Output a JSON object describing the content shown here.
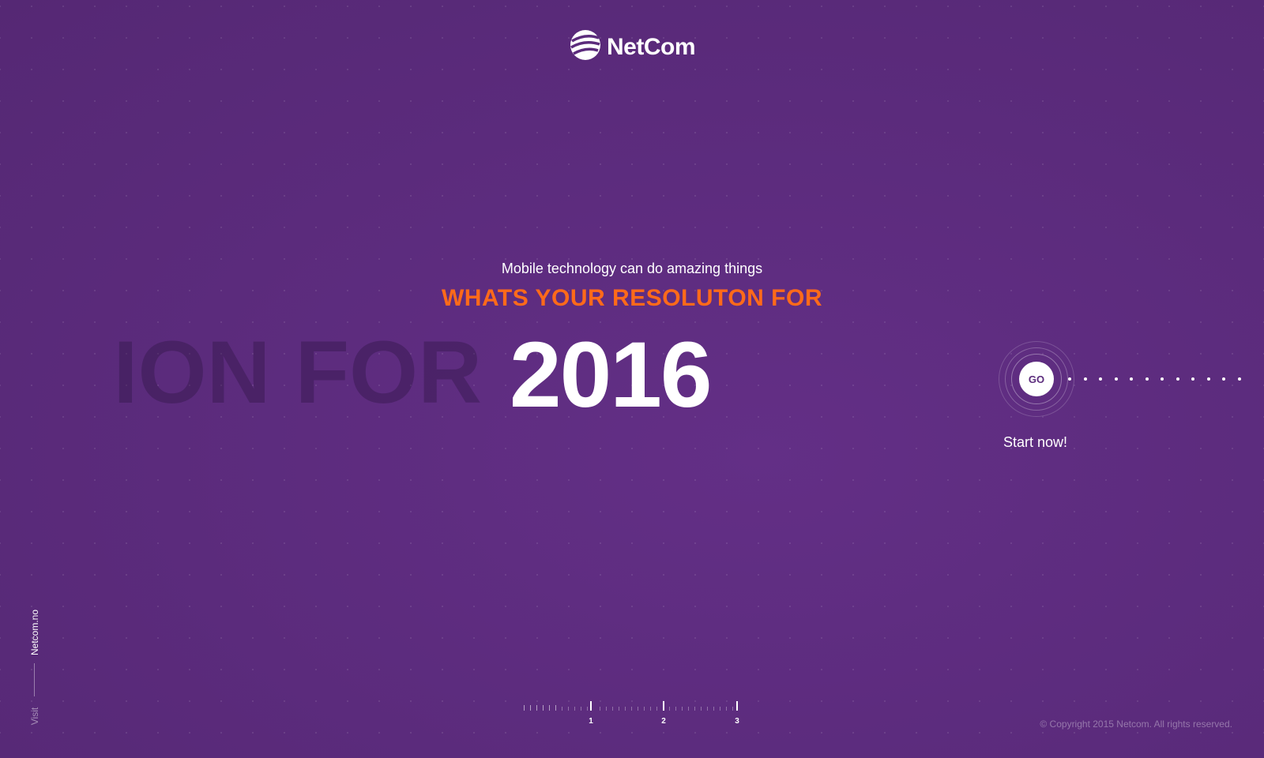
{
  "brand": {
    "name": "NetCom",
    "logo_icon": "netcom-globe-icon"
  },
  "hero": {
    "subtitle": "Mobile technology can do amazing things",
    "headline": "WHATS YOUR RESOLUTON FOR",
    "ghost_text": "ION FOR",
    "year": "2016"
  },
  "cta": {
    "go_label": "GO",
    "start_label": "Start now!"
  },
  "side": {
    "site": "Netcom.no",
    "visit": "Visit"
  },
  "progress": {
    "steps": [
      "1",
      "2",
      "3"
    ],
    "current_step": 3
  },
  "footer": {
    "copyright": "© Copyright 2015 Netcom. All rights reserved."
  },
  "colors": {
    "background": "#5b2b7c",
    "accent": "#ff6a1a",
    "text": "#ffffff"
  }
}
